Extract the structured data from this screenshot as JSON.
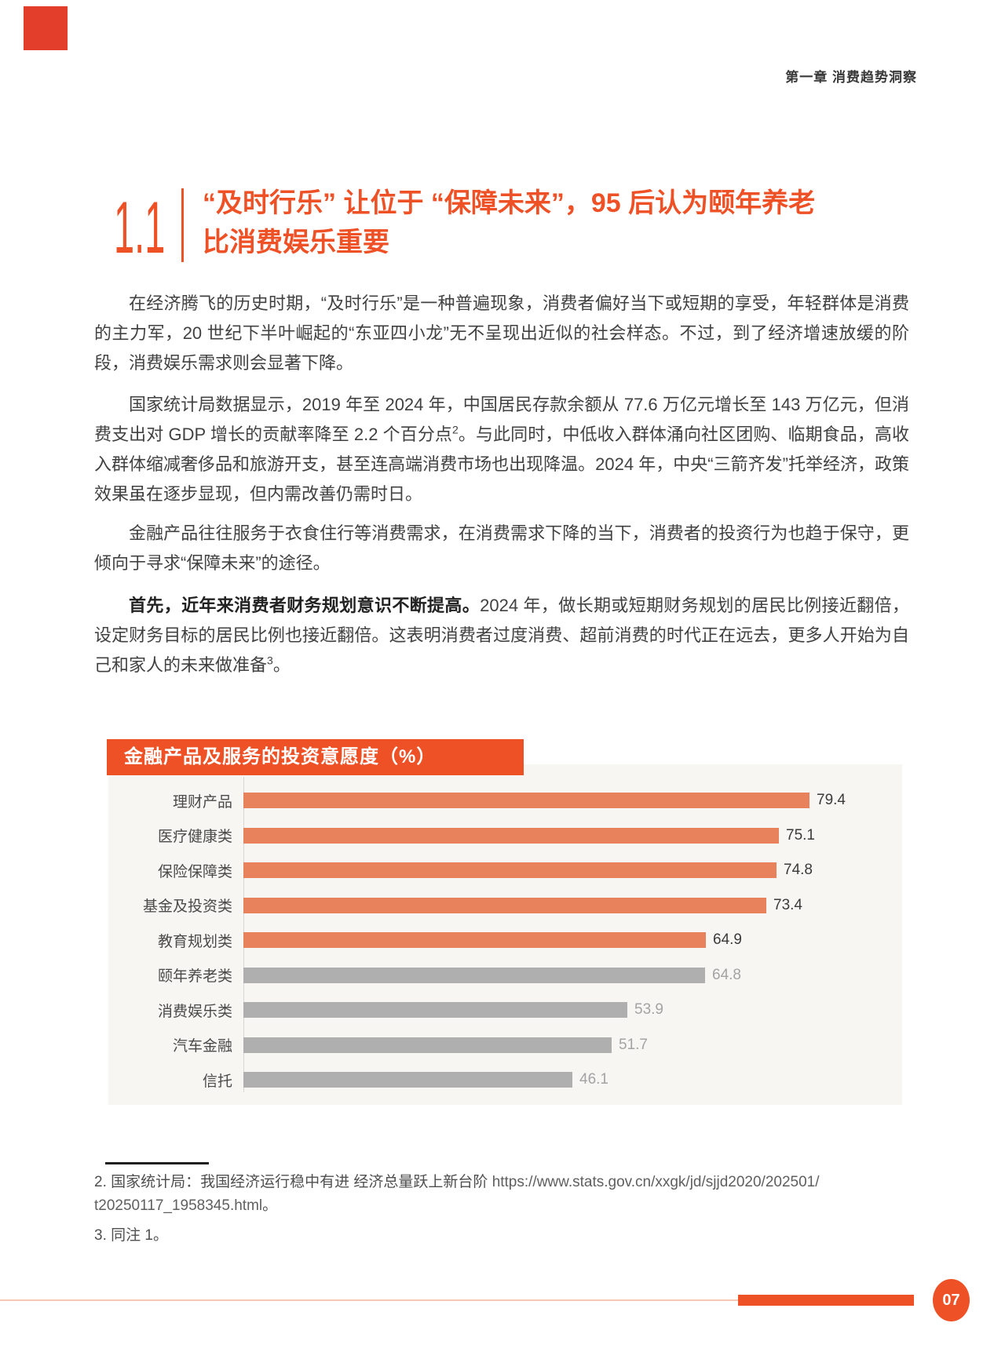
{
  "page": {
    "header": "第一章 消费趋势洞察",
    "page_number": "07",
    "accent_color": "#ee5126",
    "corner_mark_color": "#e23e2b"
  },
  "section": {
    "number": "1.1",
    "title_line1": "“及时行乐” 让位于 “保障未来”，95 后认为颐年养老",
    "title_line2": "比消费娱乐重要"
  },
  "paragraphs": {
    "p1": "在经济腾飞的历史时期，“及时行乐”是一种普遍现象，消费者偏好当下或短期的享受，年轻群体是消费的主力军，20 世纪下半叶崛起的“东亚四小龙”无不呈现出近似的社会样态。不过，到了经济增速放缓的阶段，消费娱乐需求则会显著下降。",
    "p2_a": "国家统计局数据显示，2019 年至 2024 年，中国居民存款余额从 77.6 万亿元增长至 143 万亿元，但消费支出对 GDP 增长的贡献率降至 2.2 个百分点",
    "p2_sup": "2",
    "p2_b": "。与此同时，中低收入群体涌向社区团购、临期食品，高收入群体缩减奢侈品和旅游开支，甚至连高端消费市场也出现降温。2024 年，中央“三箭齐发”托举经济，政策效果虽在逐步显现，但内需改善仍需时日。",
    "p3": "金融产品往往服务于衣食住行等消费需求，在消费需求下降的当下，消费者的投资行为也趋于保守，更倾向于寻求“保障未来”的途径。",
    "p4_lead": "首先，近年来消费者财务规划意识不断提高。",
    "p4_a": "2024 年，做长期或短期财务规划的居民比例接近翻倍，设定财务目标的居民比例也接近翻倍。这表明消费者过度消费、超前消费的时代正在远去，更多人开始为自己和家人的未来做准备",
    "p4_sup": "3",
    "p4_b": "。"
  },
  "chart_data": {
    "type": "bar",
    "orientation": "horizontal",
    "title": "金融产品及服务的投资意愿度（%）",
    "categories": [
      "理财产品",
      "医疗健康类",
      "保险保障类",
      "基金及投资类",
      "教育规划类",
      "颐年养老类",
      "消费娱乐类",
      "汽车金融",
      "信托"
    ],
    "values": [
      79.4,
      75.1,
      74.8,
      73.4,
      64.9,
      64.8,
      53.9,
      51.7,
      46.1
    ],
    "bar_colors": [
      "orange",
      "orange",
      "orange",
      "orange",
      "orange",
      "gray",
      "gray",
      "gray",
      "gray"
    ],
    "orange_hex": "#e8825c",
    "gray_hex": "#afafaf",
    "xlim": [
      0,
      92
    ],
    "value_labels_shown": true,
    "grid": false,
    "legend": "none"
  },
  "footnotes": {
    "fn2_text": "2. 国家统计局：我国经济运行稳中有进 经济总量跃上新台阶 ",
    "fn2_url_line1": "https://www.stats.gov.cn/xxgk/jd/sjjd2020/202501/",
    "fn2_url_line2": "t20250117_1958345.html",
    "fn2_tail": "。",
    "fn3": "3. 同注 1。"
  }
}
